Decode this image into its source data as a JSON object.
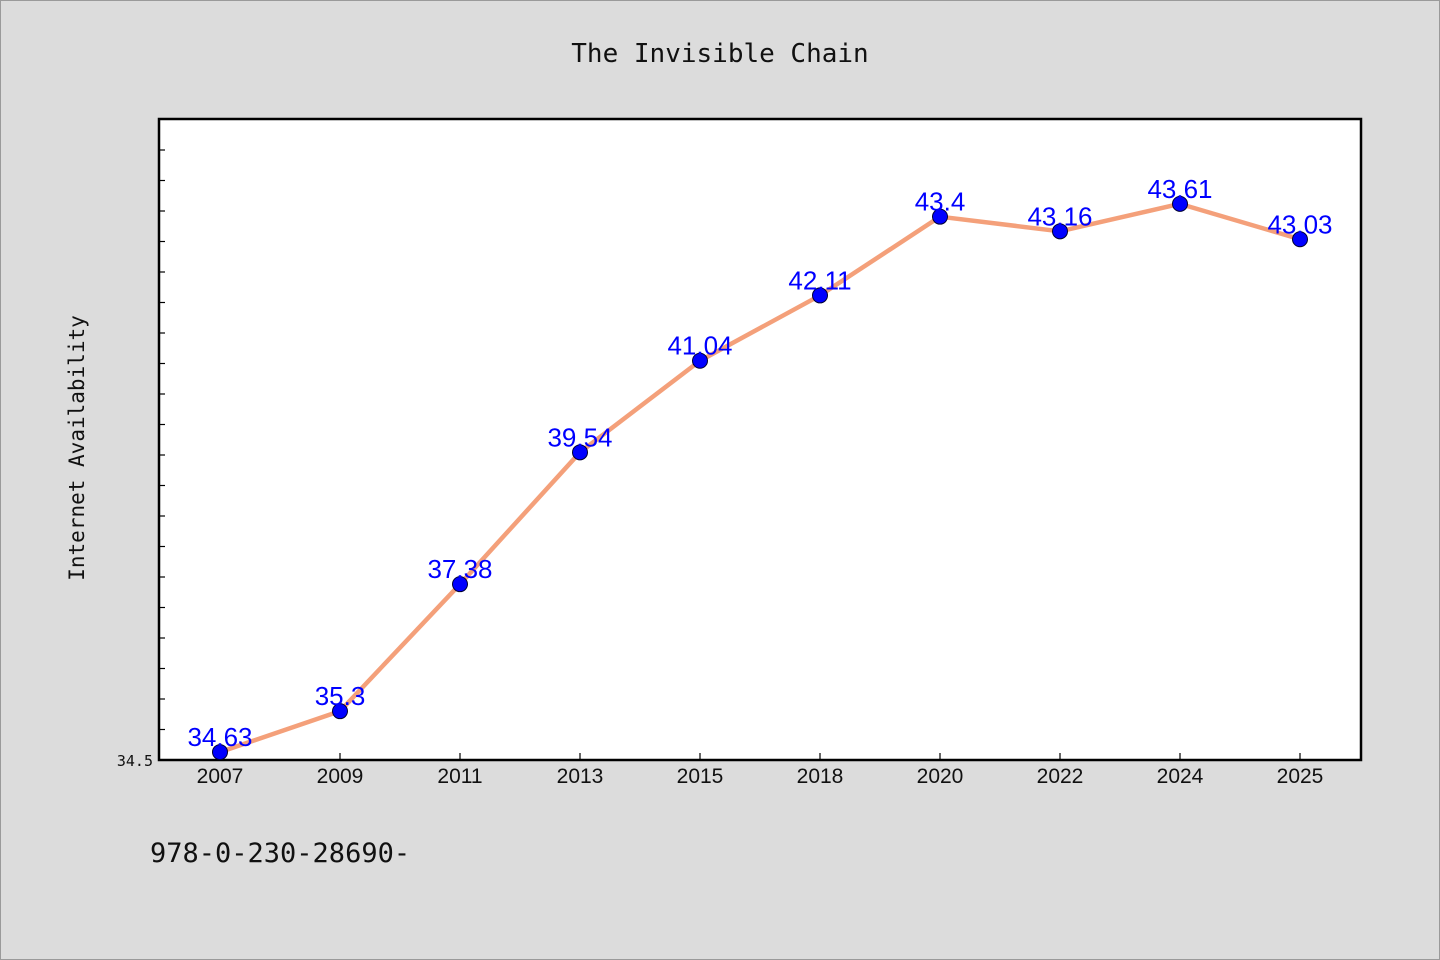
{
  "chart_data": {
    "type": "line",
    "title": "The Invisible Chain",
    "xlabel": "",
    "ylabel": "Internet Availability",
    "categories": [
      "2007",
      "2009",
      "2011",
      "2013",
      "2015",
      "2018",
      "2020",
      "2022",
      "2024",
      "2025"
    ],
    "series": [
      {
        "values": [
          34.63,
          35.3,
          37.38,
          39.54,
          41.04,
          42.11,
          43.4,
          43.16,
          43.61,
          43.03
        ],
        "data_labels": [
          "34.63",
          "35.3",
          "37.38",
          "39.54",
          "41.04",
          "42.11",
          "43.4",
          "43.16",
          "43.61",
          "43.03"
        ],
        "line_color": "#f4a07a",
        "marker_color": "#0000ff"
      }
    ],
    "ylim": [
      34.5,
      45.0
    ],
    "y_tick_labels": [
      "34.5"
    ],
    "grid": false,
    "legend": "none"
  },
  "footer": {
    "text": "978-0-230-28690-"
  }
}
